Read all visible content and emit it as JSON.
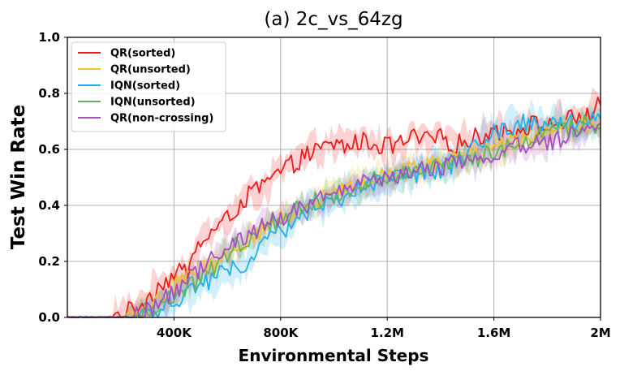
{
  "chart_data": {
    "type": "line",
    "title": "(a) 2c_vs_64zg",
    "xlabel": "Environmental Steps",
    "ylabel": "Test Win Rate",
    "xlim": [
      0,
      2000000
    ],
    "ylim": [
      0,
      1.0
    ],
    "x_ticks": [
      {
        "value": 400000,
        "label": "400K"
      },
      {
        "value": 800000,
        "label": "800K"
      },
      {
        "value": 1200000,
        "label": "1.2M"
      },
      {
        "value": 1600000,
        "label": "1.6M"
      },
      {
        "value": 2000000,
        "label": "2M"
      }
    ],
    "y_ticks": [
      {
        "value": 0.0,
        "label": "0.0"
      },
      {
        "value": 0.2,
        "label": "0.2"
      },
      {
        "value": 0.4,
        "label": "0.4"
      },
      {
        "value": 0.6,
        "label": "0.6"
      },
      {
        "value": 0.8,
        "label": "0.8"
      },
      {
        "value": 1.0,
        "label": "1.0"
      }
    ],
    "grid": true,
    "legend_position": "top-left",
    "x_units": "K steps",
    "x": [
      0,
      100,
      150,
      200,
      250,
      300,
      350,
      400,
      450,
      500,
      550,
      600,
      650,
      700,
      750,
      800,
      850,
      900,
      950,
      1000,
      1050,
      1100,
      1150,
      1200,
      1250,
      1300,
      1350,
      1400,
      1450,
      1500,
      1550,
      1600,
      1650,
      1700,
      1750,
      1800,
      1850,
      1900,
      1950,
      2000
    ],
    "series": [
      {
        "name": "QR(sorted)",
        "color": "#ee1c1c",
        "band": 0.04,
        "values": [
          0,
          0,
          0,
          0.01,
          0.03,
          0.07,
          0.12,
          0.15,
          0.17,
          0.27,
          0.31,
          0.35,
          0.41,
          0.45,
          0.48,
          0.52,
          0.55,
          0.58,
          0.6,
          0.62,
          0.61,
          0.63,
          0.62,
          0.61,
          0.62,
          0.64,
          0.63,
          0.64,
          0.62,
          0.63,
          0.65,
          0.67,
          0.66,
          0.68,
          0.69,
          0.68,
          0.7,
          0.71,
          0.72,
          0.76
        ]
      },
      {
        "name": "QR(unsorted)",
        "color": "#f5c12a",
        "band": 0.035,
        "values": [
          0,
          0,
          0,
          0,
          0.01,
          0.03,
          0.07,
          0.11,
          0.14,
          0.17,
          0.2,
          0.23,
          0.26,
          0.3,
          0.32,
          0.35,
          0.38,
          0.4,
          0.42,
          0.44,
          0.46,
          0.48,
          0.5,
          0.51,
          0.52,
          0.53,
          0.54,
          0.55,
          0.56,
          0.57,
          0.58,
          0.6,
          0.62,
          0.64,
          0.65,
          0.66,
          0.67,
          0.68,
          0.69,
          0.7
        ]
      },
      {
        "name": "IQN(sorted)",
        "color": "#1fb0ee",
        "band": 0.045,
        "values": [
          0,
          0,
          0,
          0,
          0,
          0.01,
          0.03,
          0.06,
          0.09,
          0.12,
          0.14,
          0.16,
          0.18,
          0.22,
          0.27,
          0.31,
          0.34,
          0.38,
          0.41,
          0.42,
          0.44,
          0.46,
          0.48,
          0.49,
          0.5,
          0.51,
          0.52,
          0.53,
          0.55,
          0.58,
          0.62,
          0.66,
          0.68,
          0.69,
          0.7,
          0.7,
          0.7,
          0.69,
          0.7,
          0.7
        ]
      },
      {
        "name": "IQN(unsorted)",
        "color": "#62b55e",
        "band": 0.035,
        "values": [
          0,
          0,
          0,
          0,
          0.01,
          0.02,
          0.05,
          0.08,
          0.11,
          0.14,
          0.18,
          0.23,
          0.27,
          0.3,
          0.33,
          0.36,
          0.38,
          0.4,
          0.42,
          0.44,
          0.46,
          0.47,
          0.49,
          0.5,
          0.51,
          0.52,
          0.53,
          0.54,
          0.55,
          0.56,
          0.57,
          0.59,
          0.61,
          0.63,
          0.65,
          0.66,
          0.67,
          0.68,
          0.69,
          0.69
        ]
      },
      {
        "name": "QR(non-crossing)",
        "color": "#a64fc4",
        "band": 0.035,
        "values": [
          0,
          0,
          0,
          0,
          0.01,
          0.02,
          0.05,
          0.09,
          0.13,
          0.17,
          0.21,
          0.25,
          0.28,
          0.31,
          0.34,
          0.36,
          0.38,
          0.4,
          0.42,
          0.44,
          0.46,
          0.47,
          0.49,
          0.5,
          0.51,
          0.52,
          0.53,
          0.54,
          0.55,
          0.55,
          0.56,
          0.58,
          0.6,
          0.61,
          0.62,
          0.63,
          0.64,
          0.65,
          0.66,
          0.67
        ]
      }
    ]
  }
}
